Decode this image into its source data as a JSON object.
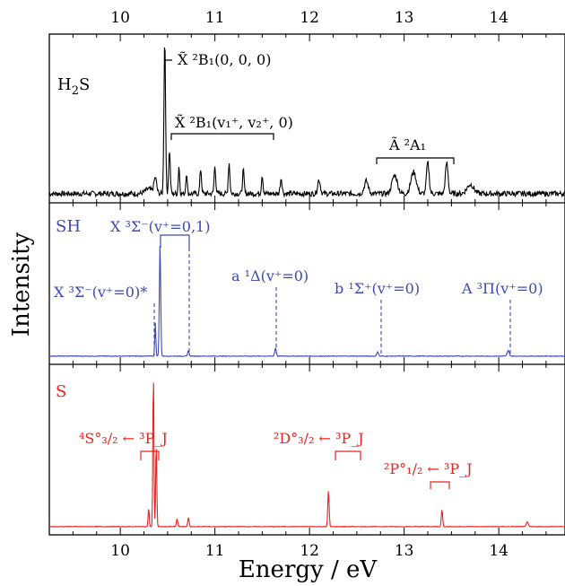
{
  "chart_data": {
    "type": "line",
    "xlabel": "Energy / eV",
    "ylabel": "Intensity",
    "xlim": [
      9.25,
      14.7
    ],
    "x_ticks": [
      "10",
      "11",
      "12",
      "13",
      "14"
    ],
    "panels": [
      {
        "name": "H2S",
        "label": {
          "main": "H",
          "sub": "2",
          "tail": "S"
        },
        "color": "#000000",
        "peaks": [
          {
            "x": 10.3,
            "y": 0.03,
            "w": 0.05
          },
          {
            "x": 10.37,
            "y": 0.1,
            "w": 0.02
          },
          {
            "x": 10.47,
            "y": 1.0,
            "w": 0.012
          },
          {
            "x": 10.52,
            "y": 0.28,
            "w": 0.012
          },
          {
            "x": 10.62,
            "y": 0.18,
            "w": 0.01
          },
          {
            "x": 10.7,
            "y": 0.14,
            "w": 0.01
          },
          {
            "x": 10.85,
            "y": 0.16,
            "w": 0.012
          },
          {
            "x": 11.0,
            "y": 0.18,
            "w": 0.012
          },
          {
            "x": 11.15,
            "y": 0.2,
            "w": 0.012
          },
          {
            "x": 11.3,
            "y": 0.15,
            "w": 0.012
          },
          {
            "x": 11.5,
            "y": 0.12,
            "w": 0.012
          },
          {
            "x": 11.7,
            "y": 0.1,
            "w": 0.014
          },
          {
            "x": 12.1,
            "y": 0.09,
            "w": 0.02
          },
          {
            "x": 12.6,
            "y": 0.08,
            "w": 0.03
          },
          {
            "x": 12.9,
            "y": 0.12,
            "w": 0.04
          },
          {
            "x": 13.1,
            "y": 0.14,
            "w": 0.04
          },
          {
            "x": 13.25,
            "y": 0.2,
            "w": 0.02
          },
          {
            "x": 13.45,
            "y": 0.2,
            "w": 0.02
          },
          {
            "x": 13.7,
            "y": 0.06,
            "w": 0.05
          }
        ],
        "noise": 0.035,
        "annotations": [
          {
            "text": "X̃ ²B₁(0, 0, 0)",
            "x1": 10.47,
            "x2": 10.52,
            "kind": "bracket-small"
          },
          {
            "text": "X̃ ²B₁(v₁⁺, v₂⁺, 0)",
            "x1": 10.55,
            "x2": 11.6,
            "kind": "bracket"
          },
          {
            "text": "Ã ²A₁",
            "x1": 12.7,
            "x2": 13.5,
            "kind": "bracket"
          }
        ]
      },
      {
        "name": "SH",
        "label": {
          "main": "SH",
          "sub": "",
          "tail": ""
        },
        "color": "#3b49b5",
        "peaks": [
          {
            "x": 10.37,
            "y": 0.3,
            "w": 0.008
          },
          {
            "x": 10.42,
            "y": 1.0,
            "w": 0.01
          },
          {
            "x": 10.72,
            "y": 0.05,
            "w": 0.01
          },
          {
            "x": 11.64,
            "y": 0.07,
            "w": 0.012
          },
          {
            "x": 12.72,
            "y": 0.04,
            "w": 0.012
          },
          {
            "x": 14.1,
            "y": 0.05,
            "w": 0.015
          }
        ],
        "noise": 0.006,
        "annotations": [
          {
            "text": "X ³Σ⁻(v⁺=0)*",
            "x": 10.37,
            "kind": "dashed"
          },
          {
            "text": "X ³Σ⁻(v⁺=0,1)",
            "x1": 10.42,
            "x2": 10.72,
            "kind": "bracket-dashed"
          },
          {
            "text": "a ¹Δ(v⁺=0)",
            "x": 11.64,
            "kind": "dashed"
          },
          {
            "text": "b ¹Σ⁺(v⁺=0)",
            "x": 12.72,
            "kind": "dashed"
          },
          {
            "text": "A ³Π(v⁺=0)",
            "x": 14.1,
            "kind": "dashed"
          }
        ]
      },
      {
        "name": "S",
        "label": {
          "main": "S",
          "sub": "",
          "tail": ""
        },
        "color": "#e8231f",
        "peaks": [
          {
            "x": 10.3,
            "y": 0.12,
            "w": 0.008
          },
          {
            "x": 10.35,
            "y": 1.0,
            "w": 0.008
          },
          {
            "x": 10.38,
            "y": 0.55,
            "w": 0.008
          },
          {
            "x": 10.6,
            "y": 0.05,
            "w": 0.01
          },
          {
            "x": 10.72,
            "y": 0.06,
            "w": 0.01
          },
          {
            "x": 12.2,
            "y": 0.23,
            "w": 0.01
          },
          {
            "x": 13.4,
            "y": 0.11,
            "w": 0.01
          },
          {
            "x": 14.3,
            "y": 0.03,
            "w": 0.015
          }
        ],
        "noise": 0.004,
        "annotations": [
          {
            "text": "⁴S°₃/₂ ← ³P_J",
            "x1": 10.2,
            "x2": 10.4,
            "kind": "bracket"
          },
          {
            "text": "²D°₃/₂ ← ³P_J",
            "x1": 12.0,
            "x2": 12.25,
            "kind": "bracket"
          },
          {
            "text": "²P°₁/₂ ← ³P_J",
            "x1": 13.25,
            "x2": 13.45,
            "kind": "bracket"
          }
        ]
      }
    ]
  },
  "labels": {
    "h2s_a0": "X̃ ²B₁(0, 0, 0)",
    "h2s_a1": "X̃ ²B₁(v₁⁺, v₂⁺, 0)",
    "h2s_a2": "Ã ²A₁",
    "sh_label": "SH",
    "sh_a0": "X ³Σ⁻(v⁺=0)*",
    "sh_a1": "X ³Σ⁻(v⁺=0,1)",
    "sh_a2": "a ¹Δ(v⁺=0)",
    "sh_a3": "b ¹Σ⁺(v⁺=0)",
    "sh_a4": "A ³Π(v⁺=0)",
    "s_label": "S",
    "s_a0": "⁴S°₃/₂ ← ³P_J",
    "s_a1": "²D°₃/₂ ← ³P_J",
    "s_a2": "²P°₁/₂ ← ³P_J"
  }
}
